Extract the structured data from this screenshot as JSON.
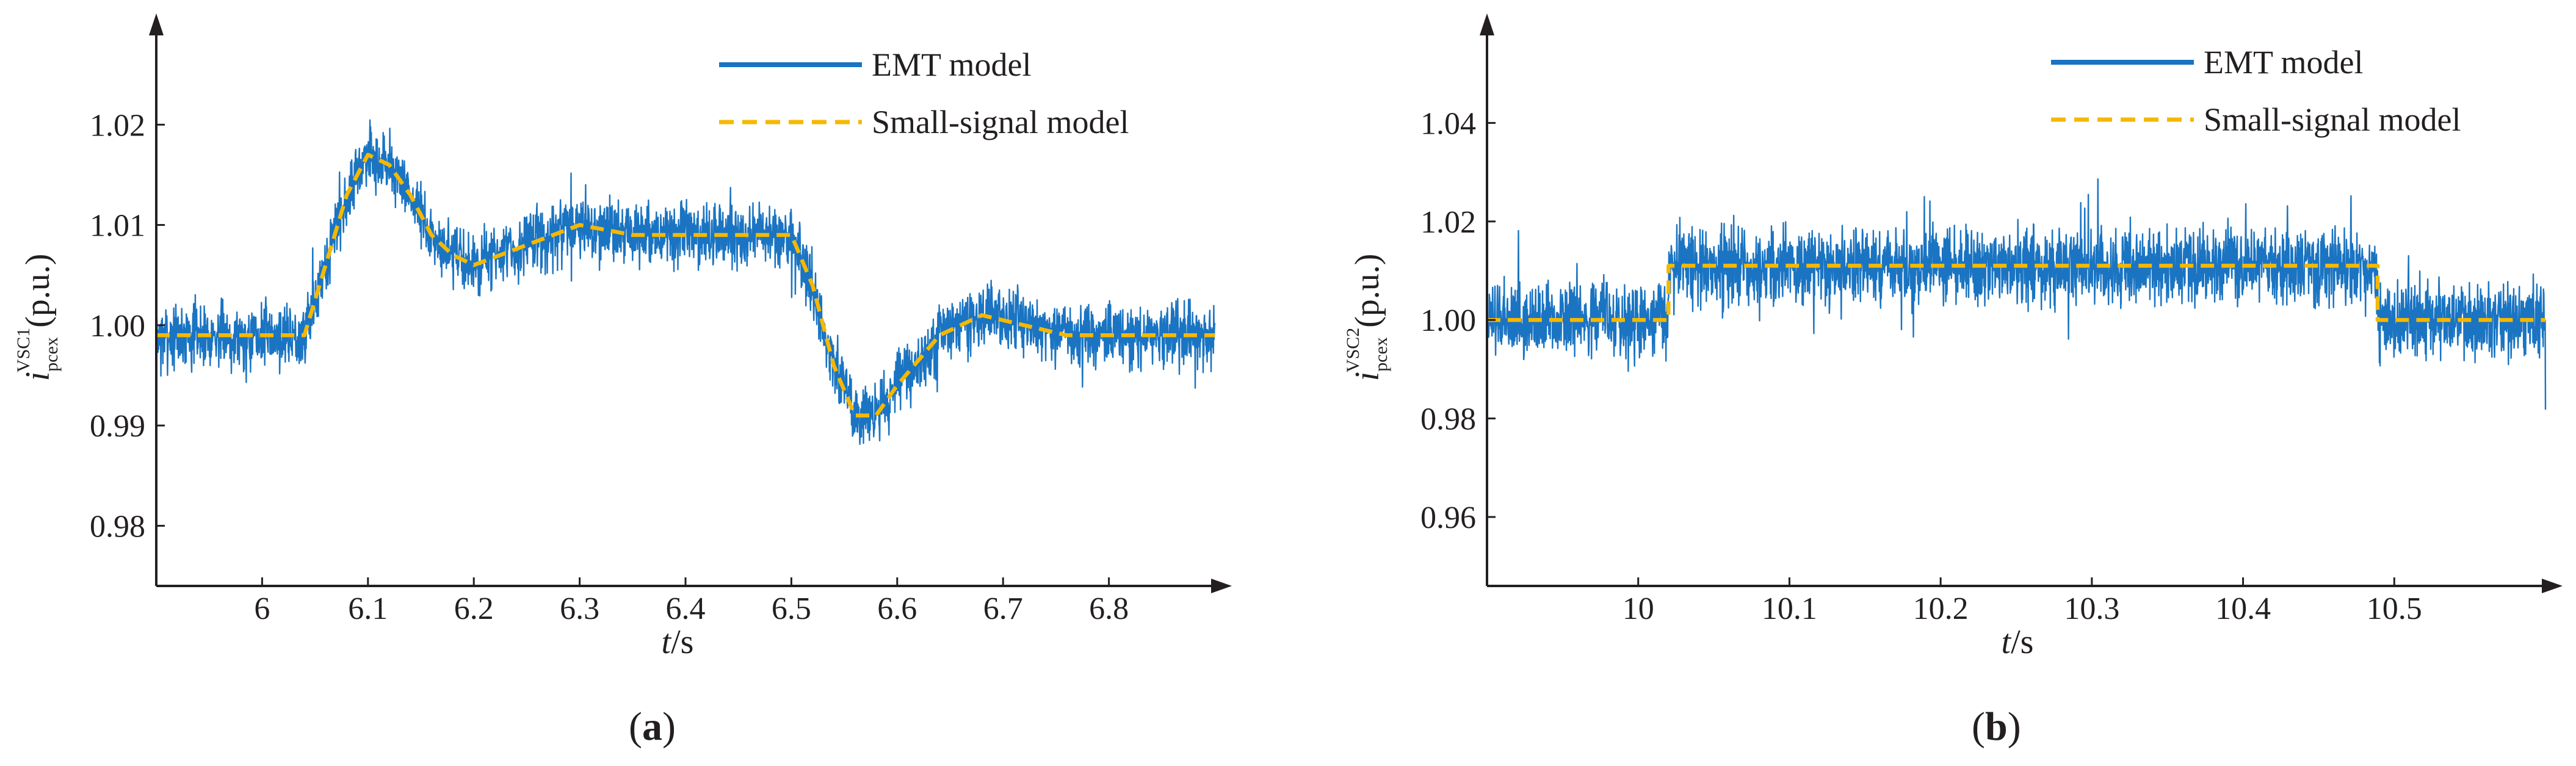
{
  "colors": {
    "emt": "#1a74c2",
    "ss": "#f5b800",
    "axis": "#231f20"
  },
  "chart_data": [
    {
      "type": "line",
      "panel_label": "a",
      "xlabel_var": "t",
      "xlabel_unit": "/s",
      "ylabel_var": "i",
      "ylabel_sub": "pcex",
      "ylabel_sup": "VSC1",
      "ylabel_unit": "(p.u.)",
      "xlim": [
        5.9,
        6.9
      ],
      "ylim": [
        0.974,
        1.03
      ],
      "xticks": [
        6,
        6.1,
        6.2,
        6.3,
        6.4,
        6.5,
        6.6,
        6.7,
        6.8
      ],
      "xtick_labels": [
        "6",
        "6.1",
        "6.2",
        "6.3",
        "6.4",
        "6.5",
        "6.6",
        "6.7",
        "6.8"
      ],
      "yticks": [
        0.98,
        0.99,
        1.0,
        1.01,
        1.02
      ],
      "ytick_labels": [
        "0.98",
        "0.99",
        "1.00",
        "1.01",
        "1.02"
      ],
      "legend": [
        "EMT model",
        "Small-signal model"
      ],
      "legend_position": "top-right",
      "series": [
        {
          "name": "EMT model",
          "style": "solid-noisy",
          "noise_amplitude": 0.0045,
          "x": [
            5.9,
            6.04,
            6.06,
            6.08,
            6.1,
            6.12,
            6.14,
            6.16,
            6.18,
            6.2,
            6.25,
            6.3,
            6.35,
            6.4,
            6.45,
            6.5,
            6.52,
            6.54,
            6.56,
            6.58,
            6.6,
            6.64,
            6.68,
            6.72,
            6.76,
            6.8,
            6.9
          ],
          "values": [
            0.999,
            0.999,
            1.006,
            1.013,
            1.017,
            1.016,
            1.013,
            1.009,
            1.007,
            1.006,
            1.008,
            1.01,
            1.009,
            1.009,
            1.009,
            1.009,
            1.004,
            0.996,
            0.991,
            0.991,
            0.994,
            0.999,
            1.001,
            1.0,
            0.999,
            0.999,
            0.999
          ]
        },
        {
          "name": "Small-signal model",
          "style": "dashed",
          "x": [
            5.9,
            6.04,
            6.06,
            6.08,
            6.1,
            6.12,
            6.14,
            6.16,
            6.18,
            6.2,
            6.25,
            6.3,
            6.35,
            6.4,
            6.45,
            6.5,
            6.52,
            6.54,
            6.56,
            6.58,
            6.6,
            6.64,
            6.68,
            6.72,
            6.76,
            6.8,
            6.9
          ],
          "values": [
            0.999,
            0.999,
            1.006,
            1.013,
            1.017,
            1.016,
            1.013,
            1.009,
            1.007,
            1.006,
            1.008,
            1.01,
            1.009,
            1.009,
            1.009,
            1.009,
            1.004,
            0.996,
            0.991,
            0.991,
            0.994,
            0.999,
            1.001,
            1.0,
            0.999,
            0.999,
            0.999
          ]
        }
      ]
    },
    {
      "type": "line",
      "panel_label": "b",
      "xlabel_var": "t",
      "xlabel_unit": "/s",
      "ylabel_var": "i",
      "ylabel_sub": "pcex",
      "ylabel_sup": "VSC2",
      "ylabel_unit": "(p.u.)",
      "xlim": [
        9.9,
        10.6
      ],
      "ylim": [
        0.946,
        1.06
      ],
      "xticks": [
        10,
        10.1,
        10.2,
        10.3,
        10.4,
        10.5
      ],
      "xtick_labels": [
        "10",
        "10.1",
        "10.2",
        "10.3",
        "10.4",
        "10.5"
      ],
      "yticks": [
        0.96,
        0.98,
        1.0,
        1.02,
        1.04
      ],
      "ytick_labels": [
        "0.96",
        "0.98",
        "1.00",
        "1.02",
        "1.04"
      ],
      "legend": [
        "EMT model",
        "Small-signal model"
      ],
      "legend_position": "top-right",
      "series": [
        {
          "name": "EMT model",
          "style": "solid-noisy",
          "noise_amplitude": 0.011,
          "x": [
            9.9,
            10.019,
            10.021,
            10.488,
            10.49,
            10.6
          ],
          "values": [
            1.0,
            1.0,
            1.011,
            1.011,
            1.0,
            1.0
          ]
        },
        {
          "name": "Small-signal model",
          "style": "dashed",
          "x": [
            9.9,
            10.02,
            10.02,
            10.489,
            10.489,
            10.6
          ],
          "values": [
            1.0,
            1.0,
            1.011,
            1.011,
            1.0,
            1.0
          ]
        }
      ]
    }
  ]
}
